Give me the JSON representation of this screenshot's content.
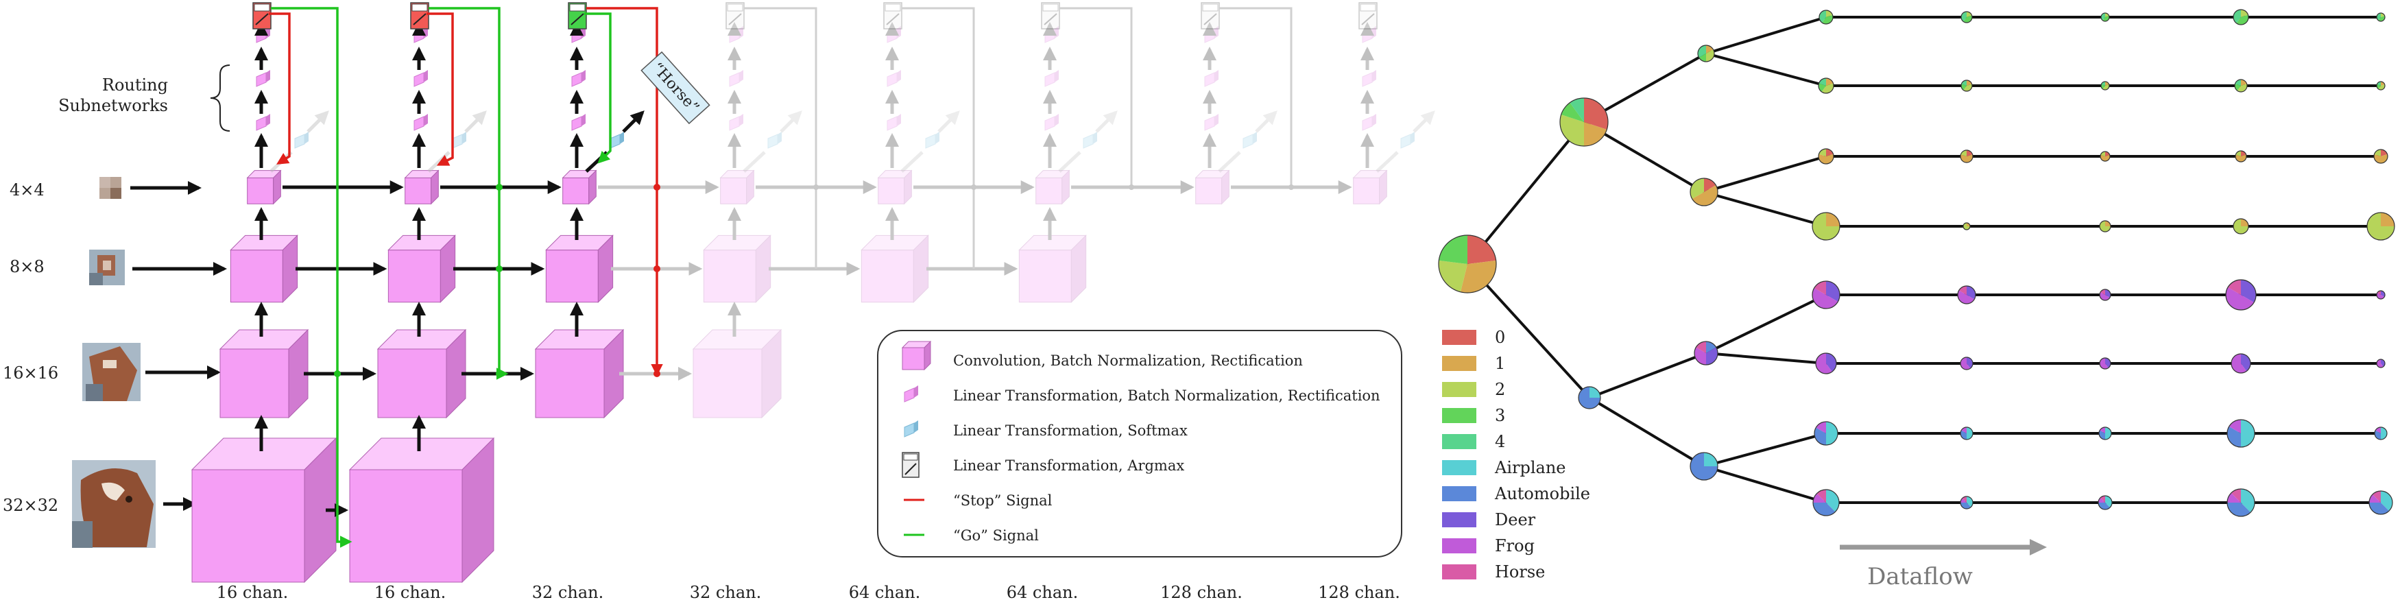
{
  "left": {
    "routing_label": [
      "Routing",
      "Subnetworks"
    ],
    "resolutions": [
      "4×4",
      "8×8",
      "16×16",
      "32×32"
    ],
    "channels": [
      "16 chan.",
      "16 chan.",
      "32 chan.",
      "32 chan.",
      "64 chan.",
      "64 chan.",
      "128 chan.",
      "128 chan."
    ],
    "output_label": "“Horse”",
    "legend": [
      {
        "icon": "conv",
        "label": "Convolution, Batch Normalization, Rectification"
      },
      {
        "icon": "linear-bn",
        "label": "Linear Transformation, Batch Normalization, Rectification"
      },
      {
        "icon": "softmax",
        "label": "Linear Transformation, Softmax"
      },
      {
        "icon": "argmax",
        "label": "Linear Transformation, Argmax"
      },
      {
        "icon": "stop-line",
        "label": "“Stop” Signal"
      },
      {
        "icon": "go-line",
        "label": "“Go” Signal"
      }
    ]
  },
  "right": {
    "class_legend": [
      {
        "label": "0",
        "color": "#d9615a"
      },
      {
        "label": "1",
        "color": "#d9a84f"
      },
      {
        "label": "2",
        "color": "#b6d45a"
      },
      {
        "label": "3",
        "color": "#62d45a"
      },
      {
        "label": "4",
        "color": "#58d48d"
      },
      {
        "label": "Airplane",
        "color": "#58cfd4"
      },
      {
        "label": "Automobile",
        "color": "#5b88d9"
      },
      {
        "label": "Deer",
        "color": "#7b5bd9"
      },
      {
        "label": "Frog",
        "color": "#c05bd9"
      },
      {
        "label": "Horse",
        "color": "#d95ba6"
      }
    ],
    "dataflow_label": "Dataflow"
  },
  "colors": {
    "conv": "#f59ef5",
    "conv_side": "#d17bd1",
    "conv_top": "#fbc9fb",
    "softmax": "#a9d8ef",
    "stop": "#e0201b",
    "go": "#1fc41f",
    "faded": "#c8c8c8"
  }
}
